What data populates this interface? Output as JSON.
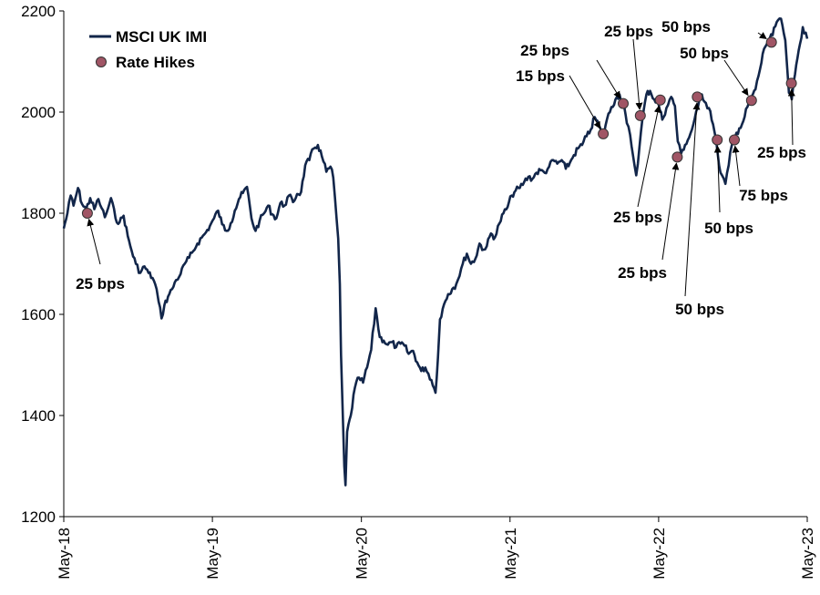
{
  "chart_data": {
    "type": "line",
    "title": "",
    "xlabel": "",
    "ylabel": "",
    "xlim": [
      "2018-05-01",
      "2023-05-01"
    ],
    "ylim": [
      1200,
      2200
    ],
    "y_ticks": [
      1200,
      1400,
      1600,
      1800,
      2000,
      2200
    ],
    "x_ticks": [
      {
        "label": "May-18",
        "date": "2018-05-01"
      },
      {
        "label": "May-19",
        "date": "2019-05-01"
      },
      {
        "label": "May-20",
        "date": "2020-05-01"
      },
      {
        "label": "May-21",
        "date": "2021-05-01"
      },
      {
        "label": "May-22",
        "date": "2022-05-01"
      },
      {
        "label": "May-23",
        "date": "2023-05-01"
      }
    ],
    "grid": false,
    "legend_position": "top-left",
    "colors": {
      "line": "#12264a",
      "marker": "#a05565"
    },
    "series": [
      {
        "name": "MSCI UK IMI",
        "points": [
          [
            "2018-05-01",
            1770
          ],
          [
            "2018-05-10",
            1800
          ],
          [
            "2018-05-18",
            1835
          ],
          [
            "2018-05-25",
            1815
          ],
          [
            "2018-06-05",
            1850
          ],
          [
            "2018-06-15",
            1818
          ],
          [
            "2018-06-25",
            1808
          ],
          [
            "2018-07-05",
            1830
          ],
          [
            "2018-07-15",
            1808
          ],
          [
            "2018-07-25",
            1828
          ],
          [
            "2018-08-02",
            1810
          ],
          [
            "2018-08-10",
            1792
          ],
          [
            "2018-08-18",
            1810
          ],
          [
            "2018-08-25",
            1830
          ],
          [
            "2018-09-05",
            1790
          ],
          [
            "2018-09-15",
            1782
          ],
          [
            "2018-09-25",
            1795
          ],
          [
            "2018-10-05",
            1755
          ],
          [
            "2018-10-15",
            1725
          ],
          [
            "2018-10-25",
            1700
          ],
          [
            "2018-11-05",
            1682
          ],
          [
            "2018-11-15",
            1695
          ],
          [
            "2018-11-25",
            1682
          ],
          [
            "2018-12-05",
            1672
          ],
          [
            "2018-12-15",
            1650
          ],
          [
            "2018-12-20",
            1625
          ],
          [
            "2018-12-27",
            1592
          ],
          [
            "2019-01-03",
            1618
          ],
          [
            "2019-01-12",
            1635
          ],
          [
            "2019-01-22",
            1650
          ],
          [
            "2019-02-01",
            1668
          ],
          [
            "2019-02-12",
            1680
          ],
          [
            "2019-02-22",
            1700
          ],
          [
            "2019-03-05",
            1712
          ],
          [
            "2019-03-15",
            1725
          ],
          [
            "2019-03-25",
            1740
          ],
          [
            "2019-04-05",
            1752
          ],
          [
            "2019-04-15",
            1762
          ],
          [
            "2019-04-25",
            1775
          ],
          [
            "2019-05-05",
            1790
          ],
          [
            "2019-05-15",
            1805
          ],
          [
            "2019-05-25",
            1778
          ],
          [
            "2019-06-05",
            1765
          ],
          [
            "2019-06-15",
            1780
          ],
          [
            "2019-06-25",
            1805
          ],
          [
            "2019-07-05",
            1828
          ],
          [
            "2019-07-15",
            1840
          ],
          [
            "2019-07-25",
            1852
          ],
          [
            "2019-08-05",
            1790
          ],
          [
            "2019-08-15",
            1765
          ],
          [
            "2019-08-25",
            1785
          ],
          [
            "2019-09-05",
            1800
          ],
          [
            "2019-09-15",
            1815
          ],
          [
            "2019-09-25",
            1798
          ],
          [
            "2019-10-05",
            1790
          ],
          [
            "2019-10-15",
            1820
          ],
          [
            "2019-10-25",
            1815
          ],
          [
            "2019-11-05",
            1835
          ],
          [
            "2019-11-15",
            1822
          ],
          [
            "2019-11-25",
            1838
          ],
          [
            "2019-12-05",
            1842
          ],
          [
            "2019-12-15",
            1895
          ],
          [
            "2019-12-25",
            1905
          ],
          [
            "2020-01-05",
            1928
          ],
          [
            "2020-01-15",
            1935
          ],
          [
            "2020-01-25",
            1912
          ],
          [
            "2020-02-05",
            1882
          ],
          [
            "2020-02-15",
            1892
          ],
          [
            "2020-02-22",
            1870
          ],
          [
            "2020-03-01",
            1790
          ],
          [
            "2020-03-05",
            1750
          ],
          [
            "2020-03-09",
            1660
          ],
          [
            "2020-03-12",
            1520
          ],
          [
            "2020-03-16",
            1410
          ],
          [
            "2020-03-20",
            1300
          ],
          [
            "2020-03-23",
            1262
          ],
          [
            "2020-03-27",
            1368
          ],
          [
            "2020-04-05",
            1400
          ],
          [
            "2020-04-15",
            1455
          ],
          [
            "2020-04-25",
            1475
          ],
          [
            "2020-05-05",
            1465
          ],
          [
            "2020-05-15",
            1495
          ],
          [
            "2020-05-25",
            1530
          ],
          [
            "2020-06-05",
            1612
          ],
          [
            "2020-06-15",
            1555
          ],
          [
            "2020-06-25",
            1548
          ],
          [
            "2020-07-05",
            1540
          ],
          [
            "2020-07-15",
            1545
          ],
          [
            "2020-07-25",
            1535
          ],
          [
            "2020-08-05",
            1542
          ],
          [
            "2020-08-15",
            1538
          ],
          [
            "2020-08-25",
            1522
          ],
          [
            "2020-09-05",
            1528
          ],
          [
            "2020-09-15",
            1505
          ],
          [
            "2020-09-25",
            1488
          ],
          [
            "2020-10-05",
            1495
          ],
          [
            "2020-10-20",
            1470
          ],
          [
            "2020-10-30",
            1445
          ],
          [
            "2020-11-05",
            1515
          ],
          [
            "2020-11-10",
            1590
          ],
          [
            "2020-11-20",
            1620
          ],
          [
            "2020-11-30",
            1640
          ],
          [
            "2020-12-10",
            1650
          ],
          [
            "2020-12-20",
            1660
          ],
          [
            "2021-01-05",
            1700
          ],
          [
            "2021-01-15",
            1720
          ],
          [
            "2021-01-25",
            1700
          ],
          [
            "2021-02-05",
            1710
          ],
          [
            "2021-02-15",
            1740
          ],
          [
            "2021-02-25",
            1728
          ],
          [
            "2021-03-05",
            1735
          ],
          [
            "2021-03-15",
            1760
          ],
          [
            "2021-03-25",
            1752
          ],
          [
            "2021-04-05",
            1780
          ],
          [
            "2021-04-15",
            1800
          ],
          [
            "2021-04-25",
            1812
          ],
          [
            "2021-05-05",
            1835
          ],
          [
            "2021-05-15",
            1845
          ],
          [
            "2021-05-25",
            1850
          ],
          [
            "2021-06-05",
            1862
          ],
          [
            "2021-06-15",
            1872
          ],
          [
            "2021-06-25",
            1868
          ],
          [
            "2021-07-05",
            1880
          ],
          [
            "2021-07-15",
            1885
          ],
          [
            "2021-07-25",
            1880
          ],
          [
            "2021-08-05",
            1892
          ],
          [
            "2021-08-15",
            1905
          ],
          [
            "2021-08-25",
            1898
          ],
          [
            "2021-09-05",
            1905
          ],
          [
            "2021-09-15",
            1888
          ],
          [
            "2021-09-25",
            1900
          ],
          [
            "2021-10-05",
            1915
          ],
          [
            "2021-10-15",
            1928
          ],
          [
            "2021-10-25",
            1935
          ],
          [
            "2021-11-05",
            1952
          ],
          [
            "2021-11-15",
            1965
          ],
          [
            "2021-11-25",
            1990
          ],
          [
            "2021-12-05",
            1975
          ],
          [
            "2021-12-15",
            1950
          ],
          [
            "2021-12-25",
            1985
          ],
          [
            "2022-01-05",
            2010
          ],
          [
            "2022-01-15",
            2025
          ],
          [
            "2022-01-25",
            2035
          ],
          [
            "2022-02-03",
            2015
          ],
          [
            "2022-02-12",
            1978
          ],
          [
            "2022-02-20",
            1955
          ],
          [
            "2022-02-27",
            1915
          ],
          [
            "2022-03-07",
            1875
          ],
          [
            "2022-03-15",
            1932
          ],
          [
            "2022-03-22",
            1985
          ],
          [
            "2022-04-01",
            2035
          ],
          [
            "2022-04-10",
            2042
          ],
          [
            "2022-04-20",
            2025
          ],
          [
            "2022-05-01",
            2015
          ],
          [
            "2022-05-10",
            1985
          ],
          [
            "2022-05-20",
            2008
          ],
          [
            "2022-06-01",
            2030
          ],
          [
            "2022-06-10",
            2012
          ],
          [
            "2022-06-17",
            1942
          ],
          [
            "2022-06-25",
            1918
          ],
          [
            "2022-07-05",
            1935
          ],
          [
            "2022-07-15",
            1950
          ],
          [
            "2022-07-25",
            1975
          ],
          [
            "2022-08-05",
            2008
          ],
          [
            "2022-08-15",
            2035
          ],
          [
            "2022-08-25",
            2018
          ],
          [
            "2022-09-05",
            2002
          ],
          [
            "2022-09-15",
            1962
          ],
          [
            "2022-09-23",
            1918
          ],
          [
            "2022-09-30",
            1880
          ],
          [
            "2022-10-12",
            1858
          ],
          [
            "2022-10-20",
            1895
          ],
          [
            "2022-10-28",
            1935
          ],
          [
            "2022-11-05",
            1952
          ],
          [
            "2022-11-15",
            1968
          ],
          [
            "2022-11-25",
            1982
          ],
          [
            "2022-12-05",
            2010
          ],
          [
            "2022-12-15",
            2030
          ],
          [
            "2022-12-25",
            2045
          ],
          [
            "2023-01-05",
            2085
          ],
          [
            "2023-01-15",
            2125
          ],
          [
            "2023-01-25",
            2142
          ],
          [
            "2023-02-05",
            2152
          ],
          [
            "2023-02-15",
            2178
          ],
          [
            "2023-02-22",
            2185
          ],
          [
            "2023-03-01",
            2172
          ],
          [
            "2023-03-08",
            2142
          ],
          [
            "2023-03-13",
            2085
          ],
          [
            "2023-03-17",
            2038
          ],
          [
            "2023-03-24",
            2025
          ],
          [
            "2023-04-01",
            2075
          ],
          [
            "2023-04-10",
            2122
          ],
          [
            "2023-04-20",
            2168
          ],
          [
            "2023-05-01",
            2145
          ]
        ]
      }
    ],
    "markers": {
      "name": "Rate Hikes",
      "points": [
        {
          "date": "2018-06-28",
          "value": 1800,
          "label": "25 bps",
          "label_anchor": "middle"
        },
        {
          "date": "2021-12-16",
          "value": 1957,
          "label": "15 bps",
          "label_anchor": "end"
        },
        {
          "date": "2022-02-03",
          "value": 2017,
          "label": "25 bps",
          "label_anchor": "end"
        },
        {
          "date": "2022-03-17",
          "value": 1993,
          "label": "25 bps",
          "label_anchor": "middle"
        },
        {
          "date": "2022-05-05",
          "value": 2024,
          "label": "25 bps",
          "label_anchor": "middle"
        },
        {
          "date": "2022-06-16",
          "value": 1911,
          "label": "25 bps",
          "label_anchor": "middle"
        },
        {
          "date": "2022-08-04",
          "value": 2030,
          "label": "50 bps",
          "label_anchor": "middle"
        },
        {
          "date": "2022-09-22",
          "value": 1945,
          "label": "50 bps",
          "label_anchor": "middle"
        },
        {
          "date": "2022-11-03",
          "value": 1945,
          "label": "75 bps",
          "label_anchor": "middle"
        },
        {
          "date": "2022-12-15",
          "value": 2023,
          "label": "50 bps",
          "label_anchor": "middle"
        },
        {
          "date": "2023-02-02",
          "value": 2138,
          "label": "50 bps",
          "label_anchor": "end"
        },
        {
          "date": "2023-03-23",
          "value": 2057,
          "label": "25 bps",
          "label_anchor": "middle"
        }
      ]
    }
  }
}
